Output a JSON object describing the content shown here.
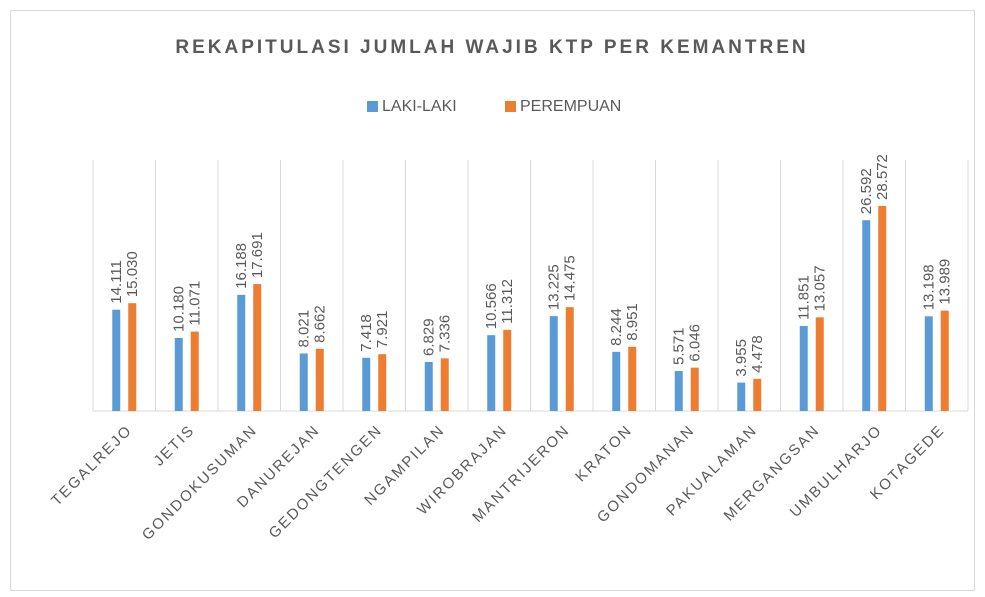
{
  "chart_data": {
    "type": "bar",
    "title": "REKAPITULASI JUMLAH WAJIB KTP PER KEMANTREN",
    "categories": [
      "TEGALREJO",
      "JETIS",
      "GONDOKUSUMAN",
      "DANUREJAN",
      "GEDONGTENGEN",
      "NGAMPILAN",
      "WIROBRAJAN",
      "MANTRIJERON",
      "KRATON",
      "GONDOMANAN",
      "PAKUALAMAN",
      "MERGANGSAN",
      "UMBULHARJO",
      "KOTAGEDE"
    ],
    "series": [
      {
        "name": "LAKI-LAKI",
        "color": "#5b9bd5",
        "values": [
          14111,
          10180,
          16188,
          8021,
          7418,
          6829,
          10566,
          13225,
          8244,
          5571,
          3955,
          11851,
          26592,
          13198
        ],
        "value_labels": [
          "14.111",
          "10.180",
          "16.188",
          "8.021",
          "7.418",
          "6.829",
          "10.566",
          "13.225",
          "8.244",
          "5.571",
          "3.955",
          "11.851",
          "26.592",
          "13.198"
        ]
      },
      {
        "name": "PEREMPUAN",
        "color": "#ed7d31",
        "values": [
          15030,
          11071,
          17691,
          8662,
          7921,
          7336,
          11312,
          14475,
          8951,
          6046,
          4478,
          13057,
          28572,
          13989
        ],
        "value_labels": [
          "15.030",
          "11.071",
          "17.691",
          "8.662",
          "7.921",
          "7.336",
          "11.312",
          "14.475",
          "8.951",
          "6.046",
          "4.478",
          "13.057",
          "28.572",
          "13.989"
        ]
      }
    ],
    "legend": "top"
  }
}
